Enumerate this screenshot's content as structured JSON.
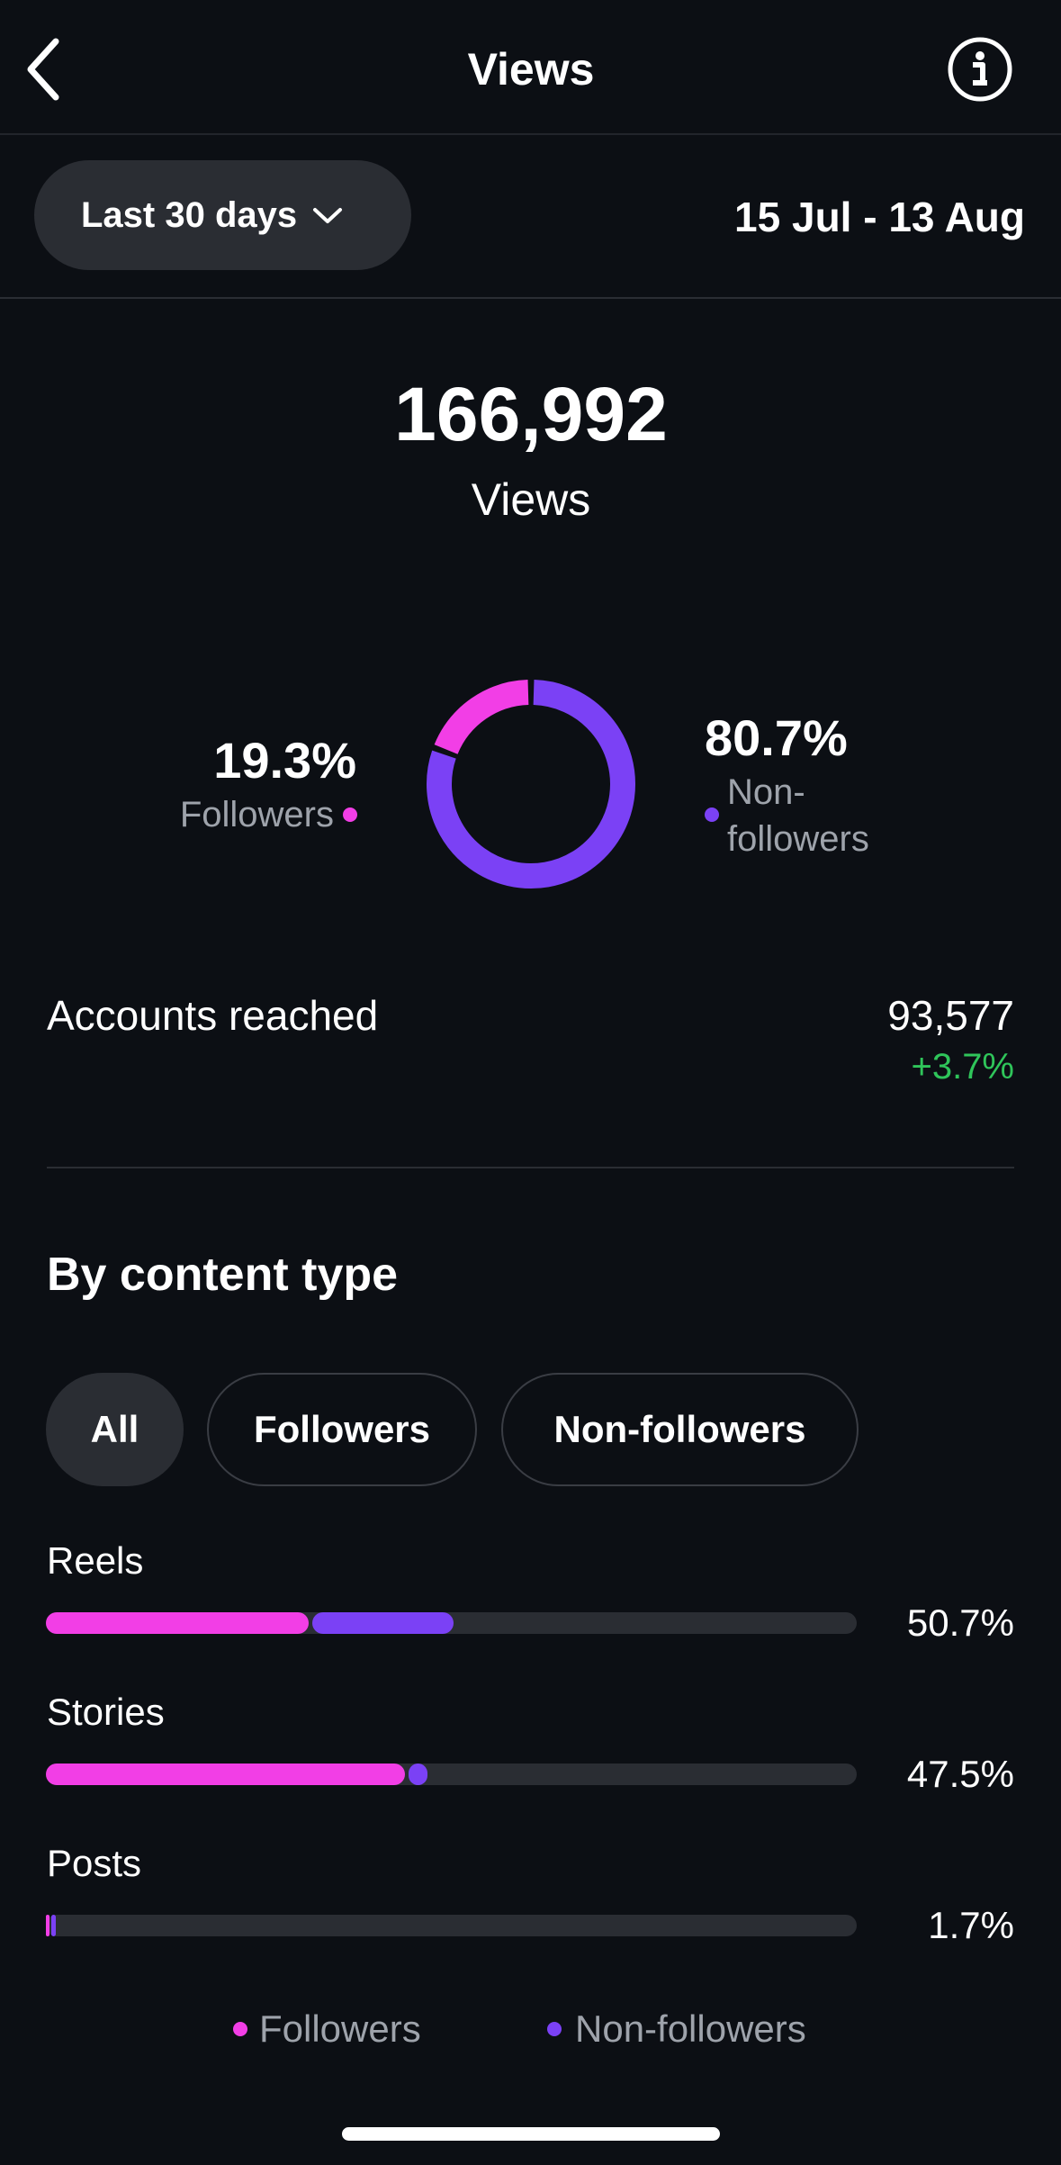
{
  "header": {
    "title": "Views"
  },
  "range": {
    "preset": "Last 30 days",
    "dates": "15 Jul - 13 Aug"
  },
  "total": {
    "value": "166,992",
    "label": "Views"
  },
  "split": {
    "values": [
      19.3,
      80.7
    ],
    "value_labels": [
      "19.3%",
      "80.7%"
    ],
    "labels": [
      "Followers",
      "Non-followers"
    ],
    "colors": [
      "#f23ee6",
      "#7b41f5"
    ]
  },
  "accounts_reached": {
    "label": "Accounts reached",
    "value": "93,577",
    "change": "+3.7%"
  },
  "content_type": {
    "title": "By content type",
    "filters": [
      "All",
      "Followers",
      "Non-followers"
    ],
    "categories": [
      "Reels",
      "Stories",
      "Posts"
    ],
    "xlim": [
      0,
      100
    ],
    "totals": [
      50.7,
      47.5,
      1.7
    ],
    "total_labels": [
      "50.7%",
      "47.5%",
      "1.7%"
    ],
    "series": [
      {
        "name": "Followers",
        "color": "#f23ee6",
        "values": [
          32.8,
          44.7,
          0.7
        ]
      },
      {
        "name": "Non-followers",
        "color": "#7b41f5",
        "values": [
          17.9,
          2.8,
          1.0
        ]
      }
    ]
  }
}
